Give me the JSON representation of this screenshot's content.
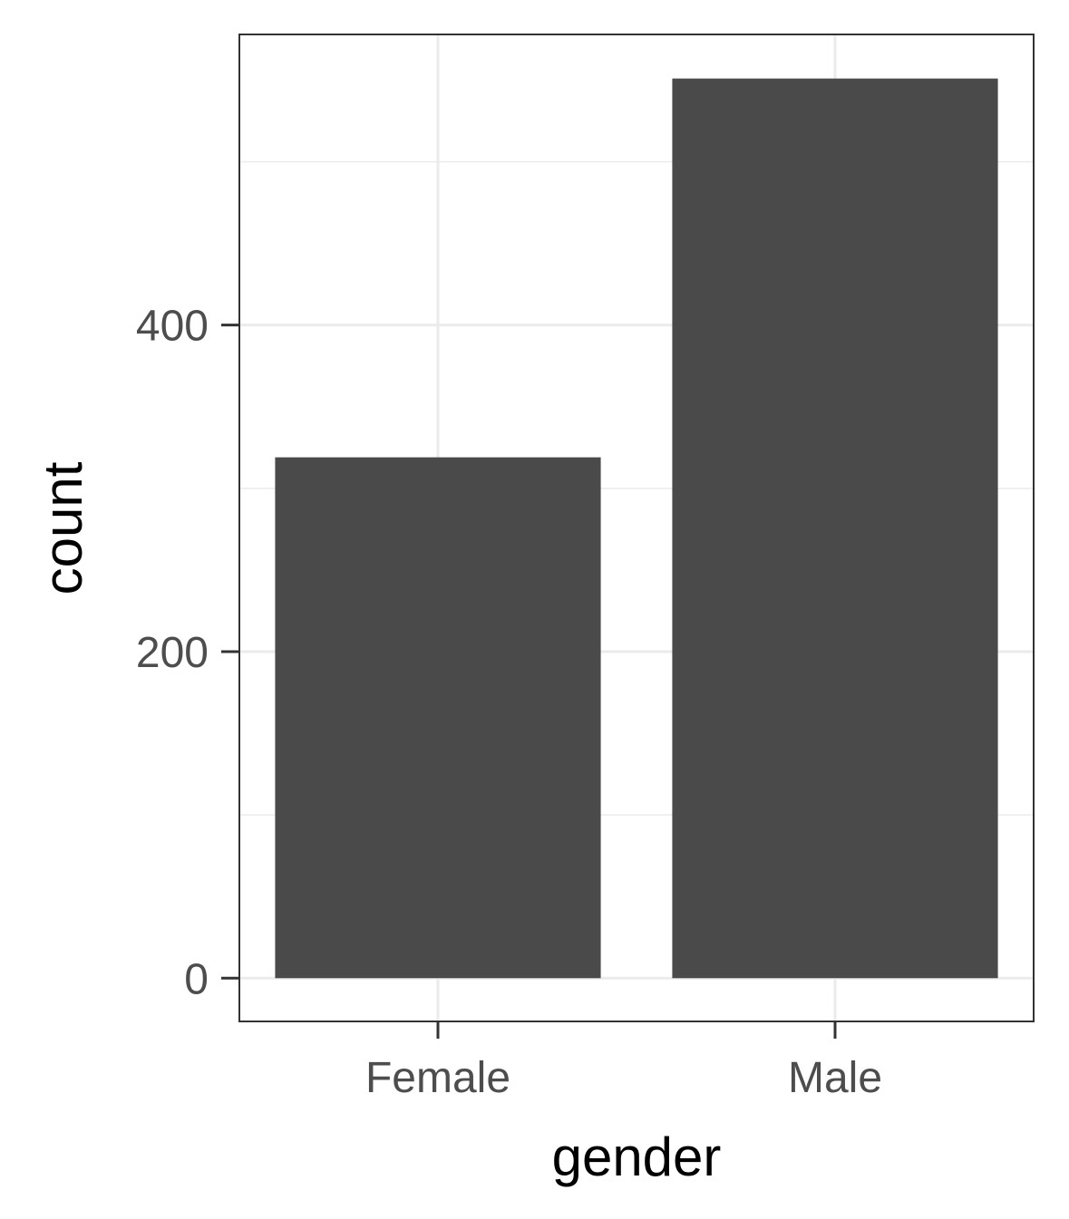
{
  "chart_data": {
    "type": "bar",
    "categories": [
      "Female",
      "Male"
    ],
    "values": [
      319,
      551
    ],
    "xlabel": "gender",
    "ylabel": "count",
    "ylim": [
      -26.5,
      578
    ],
    "yticks": [
      0,
      200,
      400
    ],
    "y_minor_gridlines": [
      100,
      300,
      500
    ],
    "grid": true,
    "legend": "none",
    "bar_color": "#4a4a4a",
    "grid_color": "#ebebeb",
    "panel_border_color": "#333333",
    "tick_label_color": "#4d4d4d",
    "axis_title_color": "#000000"
  }
}
